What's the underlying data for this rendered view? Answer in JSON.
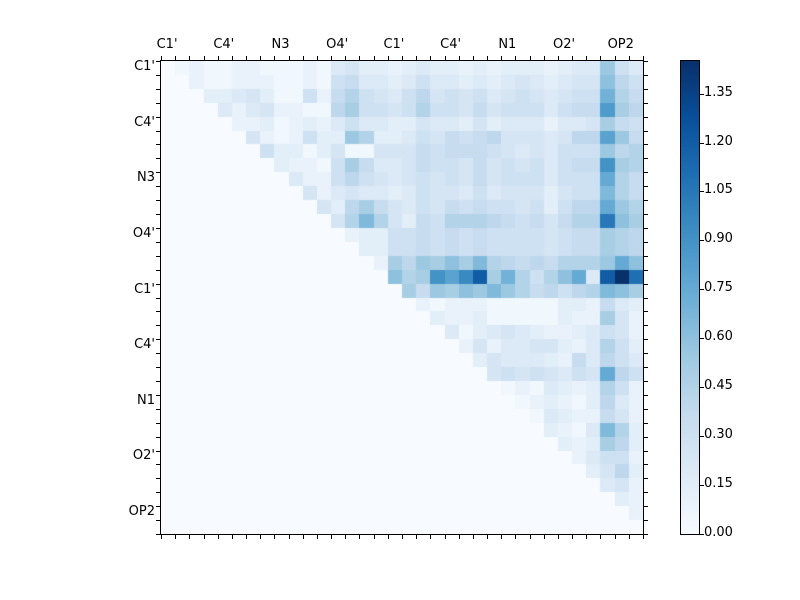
{
  "figure": {
    "background": "#ffffff"
  },
  "chart_data": {
    "type": "heatmap",
    "title": "",
    "xlabel": "",
    "ylabel": "",
    "n": 34,
    "triangle": "upper",
    "masked_region_note": "diagonal and lower triangle blank (background color)",
    "x_tick_labels": [
      "C1'",
      "C4'",
      "N3",
      "O4'",
      "C1'",
      "C4'",
      "N1",
      "O2'",
      "OP2"
    ],
    "y_tick_labels": [
      "C1'",
      "C4'",
      "N3",
      "O4'",
      "C1'",
      "C4'",
      "N1",
      "O2'",
      "OP2"
    ],
    "tick_label_stride": 4,
    "vmin": 0,
    "vmax": 1.45,
    "colormap": "Blues",
    "colormap_stops": [
      "#f7fbff",
      "#deebf7",
      "#c6dbef",
      "#9ecae1",
      "#6baed6",
      "#4292c6",
      "#2171b5",
      "#08519c",
      "#08306b"
    ],
    "background_color": "#f7fbff",
    "colorbar": {
      "tick_labels": [
        "0.00",
        "0.15",
        "0.30",
        "0.45",
        "0.60",
        "0.75",
        "0.90",
        "1.05",
        "1.20",
        "1.35"
      ],
      "tick_values": [
        0.0,
        0.15,
        0.3,
        0.45,
        0.6,
        0.75,
        0.9,
        1.05,
        1.2,
        1.35
      ]
    },
    "rows_upper_triangle": [
      [
        0.05,
        0.1,
        0.05,
        0.05,
        0.1,
        0.1,
        0.05,
        0.05,
        0.05,
        0.1,
        0.05,
        0.2,
        0.25,
        0.15,
        0.15,
        0.1,
        0.15,
        0.2,
        0.15,
        0.15,
        0.1,
        0.15,
        0.1,
        0.15,
        0.15,
        0.15,
        0.1,
        0.15,
        0.2,
        0.2,
        0.55,
        0.3,
        0.2
      ],
      [
        0.1,
        0.05,
        0.05,
        0.1,
        0.1,
        0.1,
        0.05,
        0.05,
        0.1,
        0.05,
        0.3,
        0.35,
        0.2,
        0.2,
        0.15,
        0.2,
        0.3,
        0.2,
        0.2,
        0.15,
        0.2,
        0.15,
        0.2,
        0.25,
        0.2,
        0.15,
        0.2,
        0.25,
        0.25,
        0.6,
        0.4,
        0.3
      ],
      [
        0.15,
        0.15,
        0.2,
        0.25,
        0.15,
        0.05,
        0.05,
        0.3,
        0.1,
        0.35,
        0.45,
        0.3,
        0.25,
        0.2,
        0.3,
        0.4,
        0.25,
        0.3,
        0.25,
        0.3,
        0.2,
        0.25,
        0.3,
        0.25,
        0.2,
        0.25,
        0.3,
        0.3,
        0.7,
        0.45,
        0.35
      ],
      [
        0.2,
        0.1,
        0.2,
        0.25,
        0.1,
        0.1,
        0.05,
        0.05,
        0.4,
        0.5,
        0.3,
        0.3,
        0.25,
        0.3,
        0.45,
        0.3,
        0.3,
        0.25,
        0.35,
        0.25,
        0.3,
        0.3,
        0.3,
        0.2,
        0.3,
        0.35,
        0.35,
        0.85,
        0.5,
        0.4
      ],
      [
        0.1,
        0.1,
        0.15,
        0.05,
        0.1,
        0.15,
        0.1,
        0.2,
        0.3,
        0.2,
        0.2,
        0.15,
        0.15,
        0.25,
        0.2,
        0.2,
        0.15,
        0.25,
        0.15,
        0.2,
        0.2,
        0.2,
        0.1,
        0.2,
        0.2,
        0.25,
        0.5,
        0.35,
        0.3
      ],
      [
        0.25,
        0.1,
        0.05,
        0.1,
        0.3,
        0.15,
        0.15,
        0.55,
        0.45,
        0.15,
        0.15,
        0.2,
        0.3,
        0.25,
        0.35,
        0.3,
        0.35,
        0.4,
        0.25,
        0.25,
        0.25,
        0.2,
        0.25,
        0.4,
        0.4,
        0.8,
        0.55,
        0.35
      ],
      [
        0.3,
        0.15,
        0.15,
        0.05,
        0.15,
        0.25,
        0.05,
        0.05,
        0.25,
        0.25,
        0.25,
        0.35,
        0.3,
        0.35,
        0.35,
        0.35,
        0.3,
        0.25,
        0.2,
        0.25,
        0.2,
        0.3,
        0.3,
        0.3,
        0.55,
        0.4,
        0.45
      ],
      [
        0.15,
        0.1,
        0.1,
        0.05,
        0.3,
        0.5,
        0.35,
        0.2,
        0.2,
        0.25,
        0.35,
        0.3,
        0.3,
        0.25,
        0.35,
        0.25,
        0.3,
        0.25,
        0.3,
        0.2,
        0.3,
        0.35,
        0.35,
        0.9,
        0.5,
        0.45
      ],
      [
        0.2,
        0.1,
        0.1,
        0.3,
        0.4,
        0.3,
        0.25,
        0.2,
        0.25,
        0.3,
        0.25,
        0.3,
        0.25,
        0.35,
        0.25,
        0.3,
        0.3,
        0.3,
        0.2,
        0.3,
        0.3,
        0.3,
        0.75,
        0.45,
        0.35
      ],
      [
        0.25,
        0.1,
        0.2,
        0.25,
        0.2,
        0.2,
        0.15,
        0.2,
        0.3,
        0.25,
        0.25,
        0.2,
        0.3,
        0.2,
        0.25,
        0.25,
        0.25,
        0.15,
        0.25,
        0.3,
        0.3,
        0.65,
        0.45,
        0.35
      ],
      [
        0.25,
        0.15,
        0.4,
        0.5,
        0.35,
        0.25,
        0.2,
        0.3,
        0.25,
        0.35,
        0.3,
        0.35,
        0.3,
        0.3,
        0.25,
        0.3,
        0.15,
        0.3,
        0.4,
        0.4,
        0.75,
        0.55,
        0.45
      ],
      [
        0.25,
        0.45,
        0.65,
        0.45,
        0.25,
        0.15,
        0.35,
        0.3,
        0.45,
        0.45,
        0.45,
        0.4,
        0.35,
        0.3,
        0.35,
        0.25,
        0.35,
        0.45,
        0.45,
        1.05,
        0.6,
        0.5
      ],
      [
        0.1,
        0.15,
        0.15,
        0.3,
        0.3,
        0.35,
        0.3,
        0.35,
        0.3,
        0.35,
        0.3,
        0.3,
        0.3,
        0.3,
        0.25,
        0.3,
        0.35,
        0.35,
        0.5,
        0.45,
        0.4
      ],
      [
        0.15,
        0.15,
        0.3,
        0.3,
        0.35,
        0.3,
        0.35,
        0.3,
        0.35,
        0.3,
        0.3,
        0.3,
        0.3,
        0.25,
        0.3,
        0.35,
        0.35,
        0.5,
        0.45,
        0.4
      ],
      [
        0.1,
        0.5,
        0.4,
        0.55,
        0.5,
        0.6,
        0.5,
        0.65,
        0.45,
        0.4,
        0.35,
        0.4,
        0.35,
        0.45,
        0.45,
        0.45,
        0.55,
        0.75,
        0.6
      ],
      [
        0.6,
        0.45,
        0.5,
        0.9,
        0.8,
        0.95,
        1.2,
        0.5,
        0.7,
        0.45,
        0.3,
        0.45,
        0.6,
        0.75,
        0.2,
        1.2,
        1.45,
        1.1
      ],
      [
        0.5,
        0.35,
        0.55,
        0.5,
        0.6,
        0.55,
        0.65,
        0.55,
        0.45,
        0.35,
        0.4,
        0.3,
        0.4,
        0.45,
        0.65,
        0.6,
        0.5
      ],
      [
        0.1,
        0.05,
        0.1,
        0.1,
        0.1,
        0.05,
        0.05,
        0.05,
        0.05,
        0.05,
        0.15,
        0.15,
        0.1,
        0.35,
        0.2,
        0.15
      ],
      [
        0.15,
        0.1,
        0.1,
        0.15,
        0.05,
        0.05,
        0.05,
        0.05,
        0.05,
        0.15,
        0.1,
        0.1,
        0.5,
        0.25,
        0.1
      ],
      [
        0.2,
        0.05,
        0.15,
        0.2,
        0.25,
        0.2,
        0.15,
        0.1,
        0.1,
        0.15,
        0.2,
        0.3,
        0.25,
        0.1
      ],
      [
        0.1,
        0.25,
        0.1,
        0.2,
        0.2,
        0.25,
        0.25,
        0.15,
        0.1,
        0.2,
        0.45,
        0.3,
        0.15
      ],
      [
        0.15,
        0.25,
        0.2,
        0.2,
        0.2,
        0.15,
        0.1,
        0.35,
        0.2,
        0.4,
        0.3,
        0.2
      ],
      [
        0.25,
        0.3,
        0.25,
        0.3,
        0.25,
        0.2,
        0.3,
        0.25,
        0.75,
        0.4,
        0.3
      ],
      [
        0.05,
        0.1,
        0.05,
        0.2,
        0.15,
        0.1,
        0.15,
        0.45,
        0.3,
        0.1
      ],
      [
        0.05,
        0.1,
        0.15,
        0.1,
        0.05,
        0.15,
        0.4,
        0.2,
        0.1
      ],
      [
        0.05,
        0.2,
        0.15,
        0.1,
        0.1,
        0.35,
        0.25,
        0.1
      ],
      [
        0.15,
        0.1,
        0.05,
        0.2,
        0.65,
        0.45,
        0.15
      ],
      [
        0.15,
        0.1,
        0.15,
        0.5,
        0.4,
        0.15
      ],
      [
        0.1,
        0.2,
        0.3,
        0.3,
        0.1
      ],
      [
        0.15,
        0.25,
        0.4,
        0.15
      ],
      [
        0.2,
        0.25,
        0.1
      ],
      [
        0.15,
        0.1
      ],
      [
        0.1
      ],
      []
    ]
  }
}
